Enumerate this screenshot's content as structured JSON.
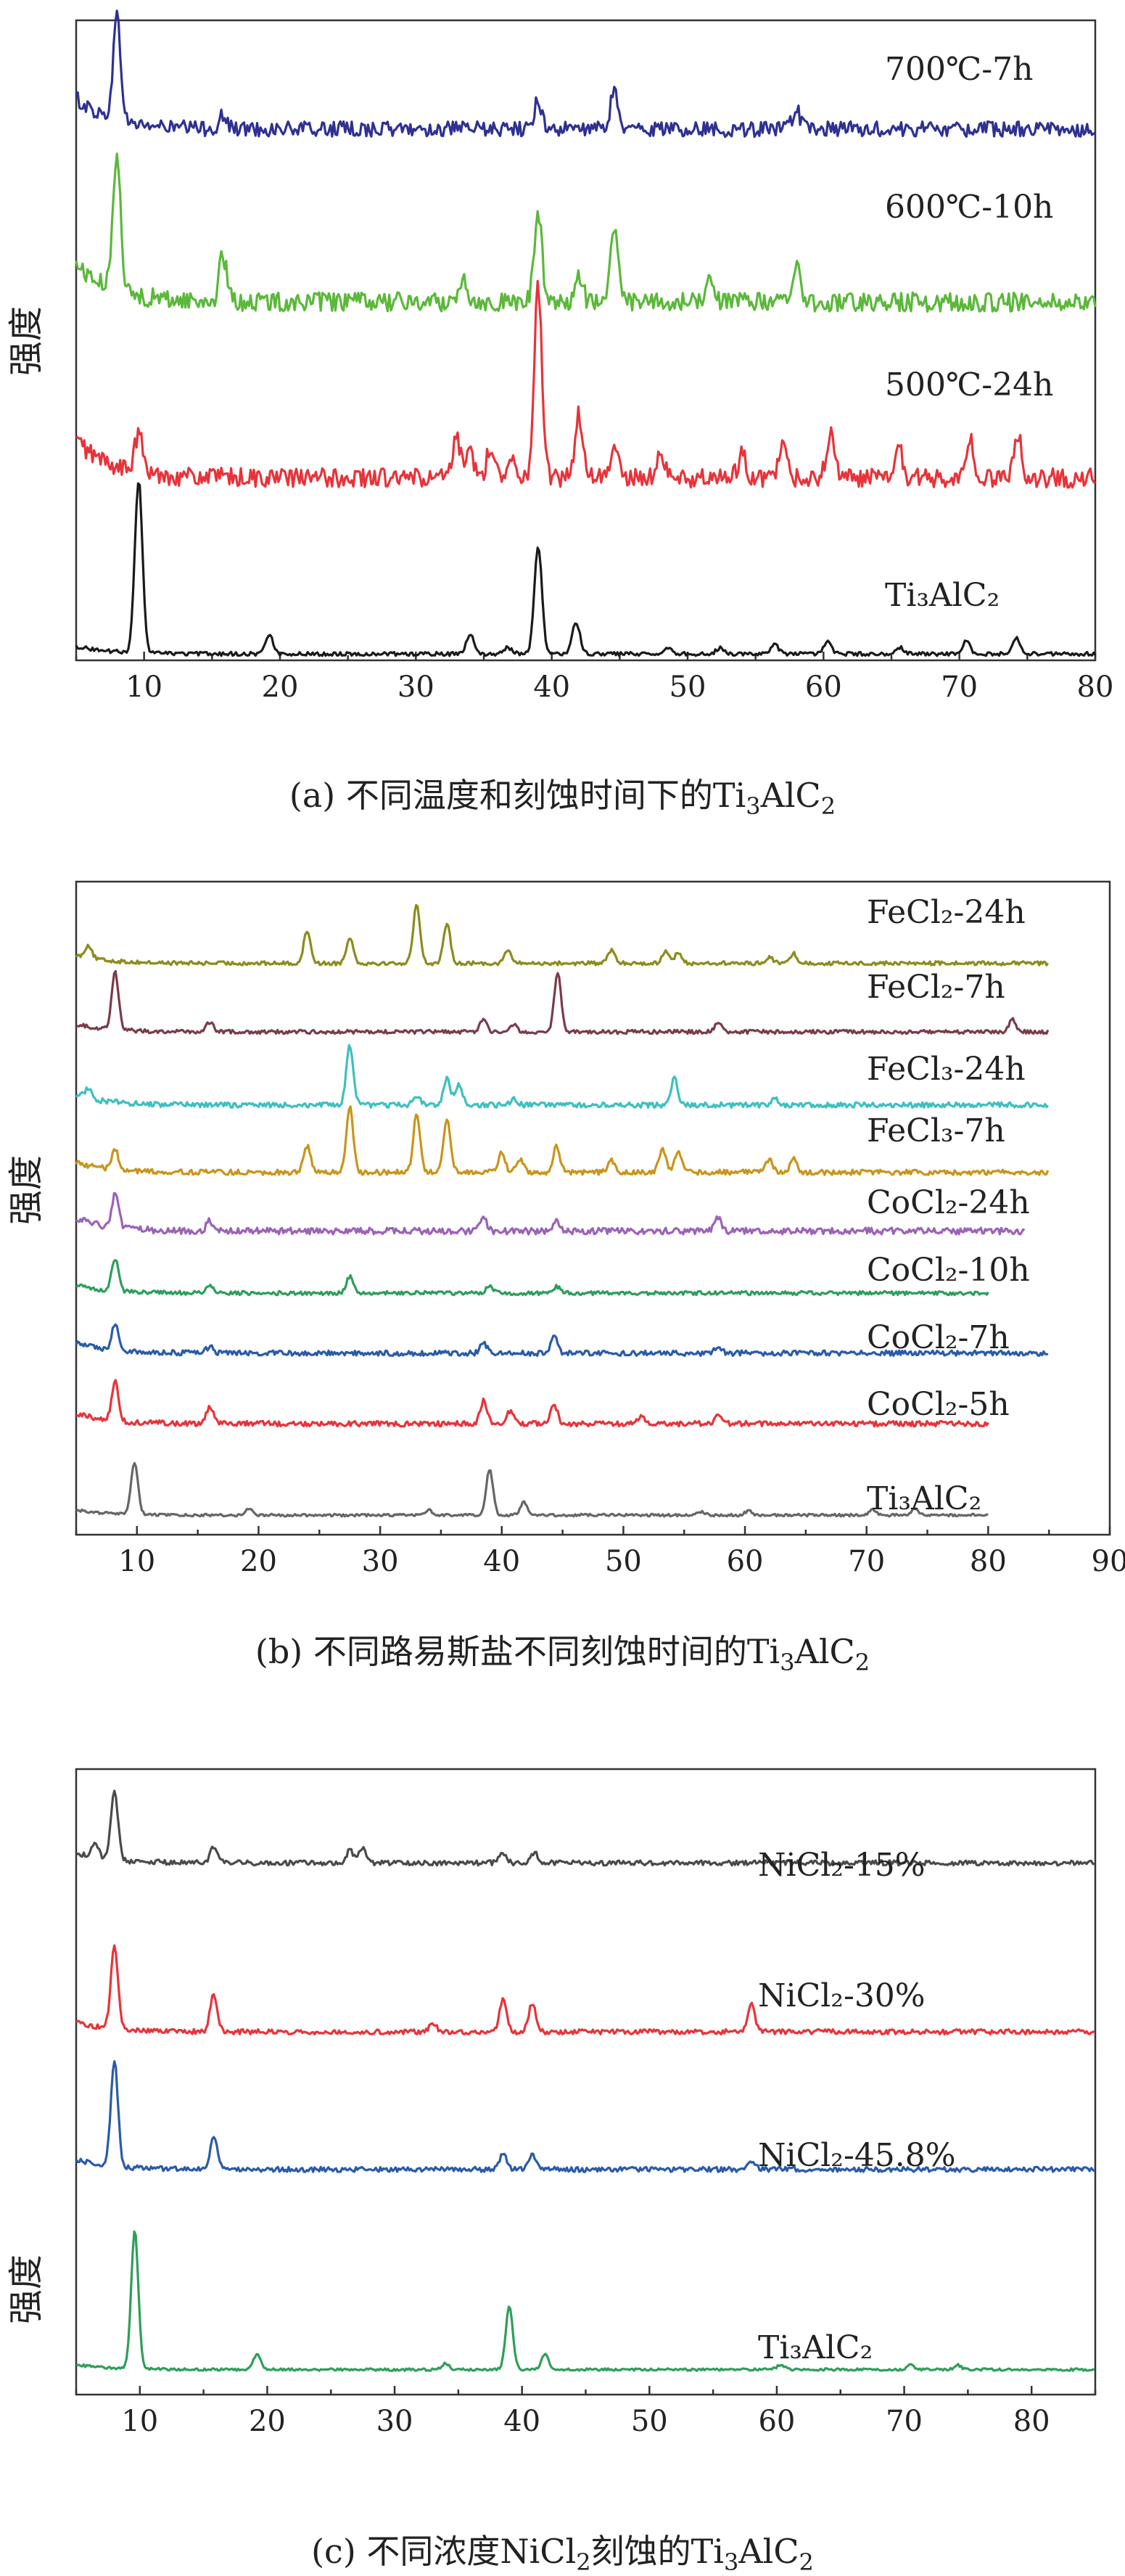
{
  "chart_data": [
    {
      "panel": "a",
      "type": "line",
      "title": "(a) 不同温度和刻蚀时间下的Ti₃AlC₂",
      "ylabel": "强度",
      "xlabel": "",
      "xlim": [
        5,
        80
      ],
      "xticks": [
        10,
        20,
        30,
        40,
        50,
        60,
        70,
        80
      ],
      "legend": "inline-right",
      "series": [
        {
          "name": "700℃-7h",
          "color": "#2e3192",
          "baseline": 0.83,
          "noise": 0.012,
          "peaks": [
            {
              "x": 8.0,
              "h": 0.16
            },
            {
              "x": 15.8,
              "h": 0.02
            },
            {
              "x": 39.0,
              "h": 0.045
            },
            {
              "x": 44.6,
              "h": 0.06
            },
            {
              "x": 58.0,
              "h": 0.03
            }
          ]
        },
        {
          "name": "600℃-10h",
          "color": "#5bb83a",
          "baseline": 0.56,
          "noise": 0.015,
          "peaks": [
            {
              "x": 8.0,
              "h": 0.22
            },
            {
              "x": 15.8,
              "h": 0.07
            },
            {
              "x": 33.5,
              "h": 0.04
            },
            {
              "x": 39.0,
              "h": 0.14
            },
            {
              "x": 42.0,
              "h": 0.04
            },
            {
              "x": 44.6,
              "h": 0.12
            },
            {
              "x": 51.6,
              "h": 0.05
            },
            {
              "x": 58.0,
              "h": 0.06
            }
          ]
        },
        {
          "name": "500℃-24h",
          "color": "#e8333a",
          "baseline": 0.285,
          "noise": 0.015,
          "peaks": [
            {
              "x": 9.6,
              "h": 0.06
            },
            {
              "x": 33.0,
              "h": 0.06
            },
            {
              "x": 34.0,
              "h": 0.04
            },
            {
              "x": 35.5,
              "h": 0.05
            },
            {
              "x": 37.0,
              "h": 0.04
            },
            {
              "x": 39.0,
              "h": 0.3
            },
            {
              "x": 42.0,
              "h": 0.1
            },
            {
              "x": 44.6,
              "h": 0.05
            },
            {
              "x": 48.0,
              "h": 0.04
            },
            {
              "x": 54.0,
              "h": 0.04
            },
            {
              "x": 57.0,
              "h": 0.05
            },
            {
              "x": 60.5,
              "h": 0.07
            },
            {
              "x": 65.5,
              "h": 0.05
            },
            {
              "x": 70.8,
              "h": 0.06
            },
            {
              "x": 74.3,
              "h": 0.07
            }
          ]
        },
        {
          "name": "Ti₃AlC₂",
          "color": "#1a1a1a",
          "baseline": 0.01,
          "noise": 0.003,
          "peaks": [
            {
              "x": 9.6,
              "h": 0.27
            },
            {
              "x": 19.2,
              "h": 0.03
            },
            {
              "x": 34.0,
              "h": 0.03
            },
            {
              "x": 36.8,
              "h": 0.01
            },
            {
              "x": 39.0,
              "h": 0.17
            },
            {
              "x": 41.8,
              "h": 0.05
            },
            {
              "x": 48.5,
              "h": 0.01
            },
            {
              "x": 52.4,
              "h": 0.01
            },
            {
              "x": 56.4,
              "h": 0.015
            },
            {
              "x": 60.3,
              "h": 0.02
            },
            {
              "x": 65.6,
              "h": 0.01
            },
            {
              "x": 70.5,
              "h": 0.02
            },
            {
              "x": 74.2,
              "h": 0.025
            }
          ]
        }
      ]
    },
    {
      "panel": "b",
      "type": "line",
      "title": "(b) 不同路易斯盐不同刻蚀时间的Ti₃AlC₂",
      "ylabel": "强度",
      "xlabel": "",
      "xlim": [
        5,
        90
      ],
      "xticks": [
        10,
        20,
        30,
        40,
        50,
        60,
        70,
        80,
        90
      ],
      "legend": "inline-right",
      "series": [
        {
          "name": "FeCl₂-24h",
          "color": "#8c8c1e",
          "baseline": 0.875,
          "xmax": 85,
          "noise": 0.003,
          "peaks": [
            {
              "x": 6.0,
              "h": 0.02
            },
            {
              "x": 24.0,
              "h": 0.05
            },
            {
              "x": 27.5,
              "h": 0.04
            },
            {
              "x": 33.0,
              "h": 0.09
            },
            {
              "x": 35.5,
              "h": 0.06
            },
            {
              "x": 40.5,
              "h": 0.02
            },
            {
              "x": 49.0,
              "h": 0.02
            },
            {
              "x": 53.5,
              "h": 0.02
            },
            {
              "x": 54.5,
              "h": 0.015
            },
            {
              "x": 62.0,
              "h": 0.01
            },
            {
              "x": 64.0,
              "h": 0.015
            }
          ]
        },
        {
          "name": "FeCl₂-7h",
          "color": "#7a3b4a",
          "baseline": 0.77,
          "xmax": 85,
          "noise": 0.003,
          "peaks": [
            {
              "x": 8.2,
              "h": 0.09
            },
            {
              "x": 16.0,
              "h": 0.015
            },
            {
              "x": 38.5,
              "h": 0.02
            },
            {
              "x": 41.0,
              "h": 0.01
            },
            {
              "x": 44.6,
              "h": 0.09
            },
            {
              "x": 57.8,
              "h": 0.015
            },
            {
              "x": 82.0,
              "h": 0.02
            }
          ]
        },
        {
          "name": "FeCl₃-24h",
          "color": "#3fbfbf",
          "baseline": 0.658,
          "xmax": 85,
          "noise": 0.004,
          "peaks": [
            {
              "x": 6.0,
              "h": 0.015
            },
            {
              "x": 27.5,
              "h": 0.09
            },
            {
              "x": 33.0,
              "h": 0.015
            },
            {
              "x": 35.5,
              "h": 0.04
            },
            {
              "x": 36.5,
              "h": 0.03
            },
            {
              "x": 41.0,
              "h": 0.01
            },
            {
              "x": 54.2,
              "h": 0.04
            },
            {
              "x": 62.5,
              "h": 0.01
            }
          ]
        },
        {
          "name": "FeCl₃-7h",
          "color": "#c9951a",
          "baseline": 0.555,
          "xmax": 85,
          "noise": 0.004,
          "peaks": [
            {
              "x": 8.2,
              "h": 0.03
            },
            {
              "x": 24.0,
              "h": 0.04
            },
            {
              "x": 27.5,
              "h": 0.1
            },
            {
              "x": 33.0,
              "h": 0.09
            },
            {
              "x": 35.5,
              "h": 0.08
            },
            {
              "x": 40.0,
              "h": 0.03
            },
            {
              "x": 41.5,
              "h": 0.02
            },
            {
              "x": 44.5,
              "h": 0.04
            },
            {
              "x": 49.0,
              "h": 0.02
            },
            {
              "x": 53.2,
              "h": 0.035
            },
            {
              "x": 54.5,
              "h": 0.03
            },
            {
              "x": 62.0,
              "h": 0.02
            },
            {
              "x": 64.0,
              "h": 0.02
            }
          ]
        },
        {
          "name": "CoCl₂-24h",
          "color": "#9b63b8",
          "baseline": 0.465,
          "xmax": 83,
          "noise": 0.005,
          "peaks": [
            {
              "x": 8.2,
              "h": 0.05
            },
            {
              "x": 16.0,
              "h": 0.015
            },
            {
              "x": 38.5,
              "h": 0.02
            },
            {
              "x": 44.5,
              "h": 0.015
            },
            {
              "x": 57.8,
              "h": 0.02
            }
          ]
        },
        {
          "name": "CoCl₂-10h",
          "color": "#2e9e5b",
          "baseline": 0.37,
          "xmax": 80,
          "noise": 0.003,
          "peaks": [
            {
              "x": 8.2,
              "h": 0.05
            },
            {
              "x": 16.0,
              "h": 0.01
            },
            {
              "x": 27.5,
              "h": 0.025
            },
            {
              "x": 39.0,
              "h": 0.01
            },
            {
              "x": 44.5,
              "h": 0.01
            }
          ]
        },
        {
          "name": "CoCl₂-7h",
          "color": "#2a5ba8",
          "baseline": 0.278,
          "xmax": 85,
          "noise": 0.004,
          "peaks": [
            {
              "x": 8.2,
              "h": 0.04
            },
            {
              "x": 16.0,
              "h": 0.01
            },
            {
              "x": 38.5,
              "h": 0.015
            },
            {
              "x": 44.3,
              "h": 0.025
            },
            {
              "x": 57.8,
              "h": 0.01
            }
          ]
        },
        {
          "name": "CoCl₂-5h",
          "color": "#e8333a",
          "baseline": 0.17,
          "xmax": 80,
          "noise": 0.004,
          "peaks": [
            {
              "x": 8.2,
              "h": 0.06
            },
            {
              "x": 16.0,
              "h": 0.025
            },
            {
              "x": 38.5,
              "h": 0.035
            },
            {
              "x": 40.7,
              "h": 0.02
            },
            {
              "x": 44.3,
              "h": 0.03
            },
            {
              "x": 51.5,
              "h": 0.01
            },
            {
              "x": 57.8,
              "h": 0.015
            }
          ]
        },
        {
          "name": "Ti₃AlC₂",
          "color": "#666666",
          "baseline": 0.03,
          "xmax": 80,
          "noise": 0.002,
          "peaks": [
            {
              "x": 9.8,
              "h": 0.08
            },
            {
              "x": 19.2,
              "h": 0.01
            },
            {
              "x": 34.0,
              "h": 0.008
            },
            {
              "x": 39.0,
              "h": 0.07
            },
            {
              "x": 41.8,
              "h": 0.02
            },
            {
              "x": 56.4,
              "h": 0.005
            },
            {
              "x": 60.3,
              "h": 0.007
            },
            {
              "x": 70.5,
              "h": 0.008
            },
            {
              "x": 74.0,
              "h": 0.01
            }
          ]
        }
      ]
    },
    {
      "panel": "c",
      "type": "line",
      "title": "(c) 不同浓度NiCl₂刻蚀的Ti₃AlC₂",
      "ylabel": "强度",
      "xlabel": "",
      "xlim": [
        5,
        85
      ],
      "xticks": [
        10,
        20,
        30,
        40,
        50,
        60,
        70,
        80
      ],
      "legend": "inline-right",
      "series": [
        {
          "name": "NiCl₂-15%",
          "color": "#4a4a4a",
          "baseline": 0.85,
          "noise": 0.004,
          "peaks": [
            {
              "x": 6.5,
              "h": 0.02
            },
            {
              "x": 8.0,
              "h": 0.11
            },
            {
              "x": 15.8,
              "h": 0.025
            },
            {
              "x": 26.5,
              "h": 0.02
            },
            {
              "x": 27.5,
              "h": 0.025
            },
            {
              "x": 38.5,
              "h": 0.015
            },
            {
              "x": 41.0,
              "h": 0.015
            }
          ]
        },
        {
          "name": "NiCl₂-30%",
          "color": "#e8333a",
          "baseline": 0.58,
          "noise": 0.004,
          "peaks": [
            {
              "x": 8.0,
              "h": 0.13
            },
            {
              "x": 15.8,
              "h": 0.06
            },
            {
              "x": 33.0,
              "h": 0.015
            },
            {
              "x": 38.5,
              "h": 0.05
            },
            {
              "x": 40.8,
              "h": 0.045
            },
            {
              "x": 58.0,
              "h": 0.045
            }
          ]
        },
        {
          "name": "NiCl₂-45.8%",
          "color": "#2a5ba8",
          "baseline": 0.36,
          "noise": 0.004,
          "peaks": [
            {
              "x": 8.0,
              "h": 0.17
            },
            {
              "x": 15.8,
              "h": 0.05
            },
            {
              "x": 38.5,
              "h": 0.025
            },
            {
              "x": 40.8,
              "h": 0.025
            },
            {
              "x": 58.0,
              "h": 0.015
            }
          ]
        },
        {
          "name": "Ti₃AlC₂",
          "color": "#2e9e5b",
          "baseline": 0.04,
          "noise": 0.002,
          "peaks": [
            {
              "x": 9.6,
              "h": 0.22
            },
            {
              "x": 19.2,
              "h": 0.025
            },
            {
              "x": 34.0,
              "h": 0.01
            },
            {
              "x": 39.0,
              "h": 0.1
            },
            {
              "x": 41.8,
              "h": 0.025
            },
            {
              "x": 60.3,
              "h": 0.008
            },
            {
              "x": 70.5,
              "h": 0.008
            },
            {
              "x": 74.2,
              "h": 0.007
            }
          ]
        }
      ]
    }
  ],
  "captions": {
    "a": {
      "prefix": "(a) 不同温度和刻蚀时间下的Ti",
      "sub1": "3",
      "mid": "AlC",
      "sub2": "2"
    },
    "b": {
      "prefix": "(b) 不同路易斯盐不同刻蚀时间的Ti",
      "sub1": "3",
      "mid": "AlC",
      "sub2": "2"
    },
    "c": {
      "prefix": "(c) 不同浓度NiCl",
      "sub1": "2",
      "mid": "刻蚀的Ti",
      "sub2": "3",
      "tail": "AlC",
      "sub3": "2"
    }
  },
  "ylabel": "强度"
}
